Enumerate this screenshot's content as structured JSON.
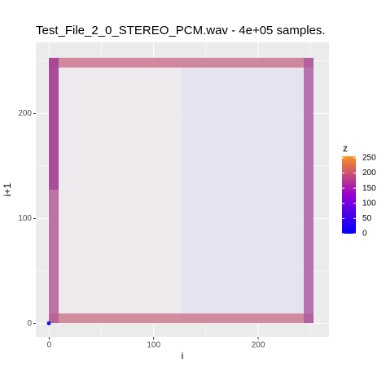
{
  "chart_data": {
    "type": "scatter",
    "title": "Test_File_2_0_STEREO_PCM.wav - 4e+05 samples.",
    "x_label": "i",
    "y_label": "i+1",
    "xlim": [
      -12.75,
      267.75
    ],
    "ylim": [
      -12.75,
      267.75
    ],
    "xticks": [
      0,
      100,
      200
    ],
    "yticks": [
      0,
      100,
      200
    ],
    "xminorticks": [
      50,
      150,
      250
    ],
    "yminorticks": [
      50,
      150,
      250
    ],
    "grid": true,
    "colorbar": {
      "title": "z",
      "lim": [
        0,
        255
      ],
      "ticks": [
        0,
        50,
        100,
        150,
        200,
        250
      ],
      "colors": [
        "#0000ff",
        "#9400d3",
        "#f7931e"
      ]
    },
    "legend_position": "right"
  }
}
